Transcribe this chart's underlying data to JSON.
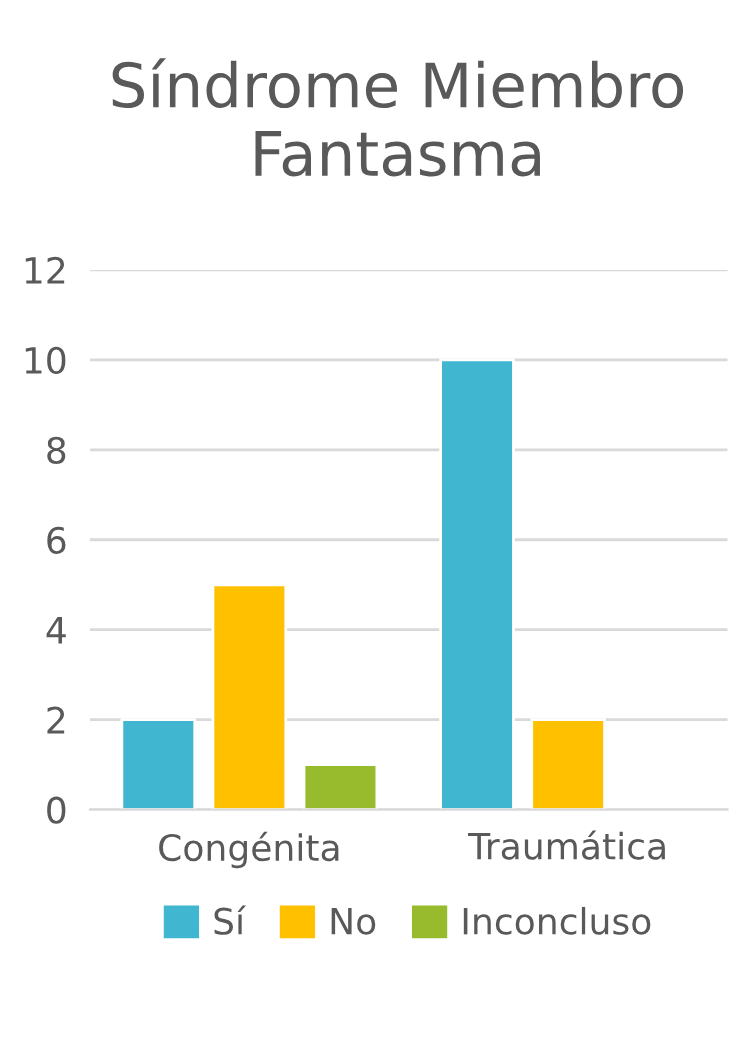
{
  "chart_data": {
    "type": "bar",
    "title": "Síndrome Miembro Fantasma",
    "categories": [
      "Congénita",
      "Traumática"
    ],
    "series": [
      {
        "name": "Sí",
        "color": "#41b6d0",
        "values": [
          2,
          10
        ]
      },
      {
        "name": "No",
        "color": "#ffc000",
        "values": [
          5,
          2
        ]
      },
      {
        "name": "Inconcluso",
        "color": "#97bb2c",
        "values": [
          1,
          null
        ]
      }
    ],
    "ylim": [
      0,
      12
    ],
    "yticks": [
      0,
      2,
      4,
      6,
      8,
      10,
      12
    ],
    "grid": "y",
    "legend": "bottom"
  }
}
